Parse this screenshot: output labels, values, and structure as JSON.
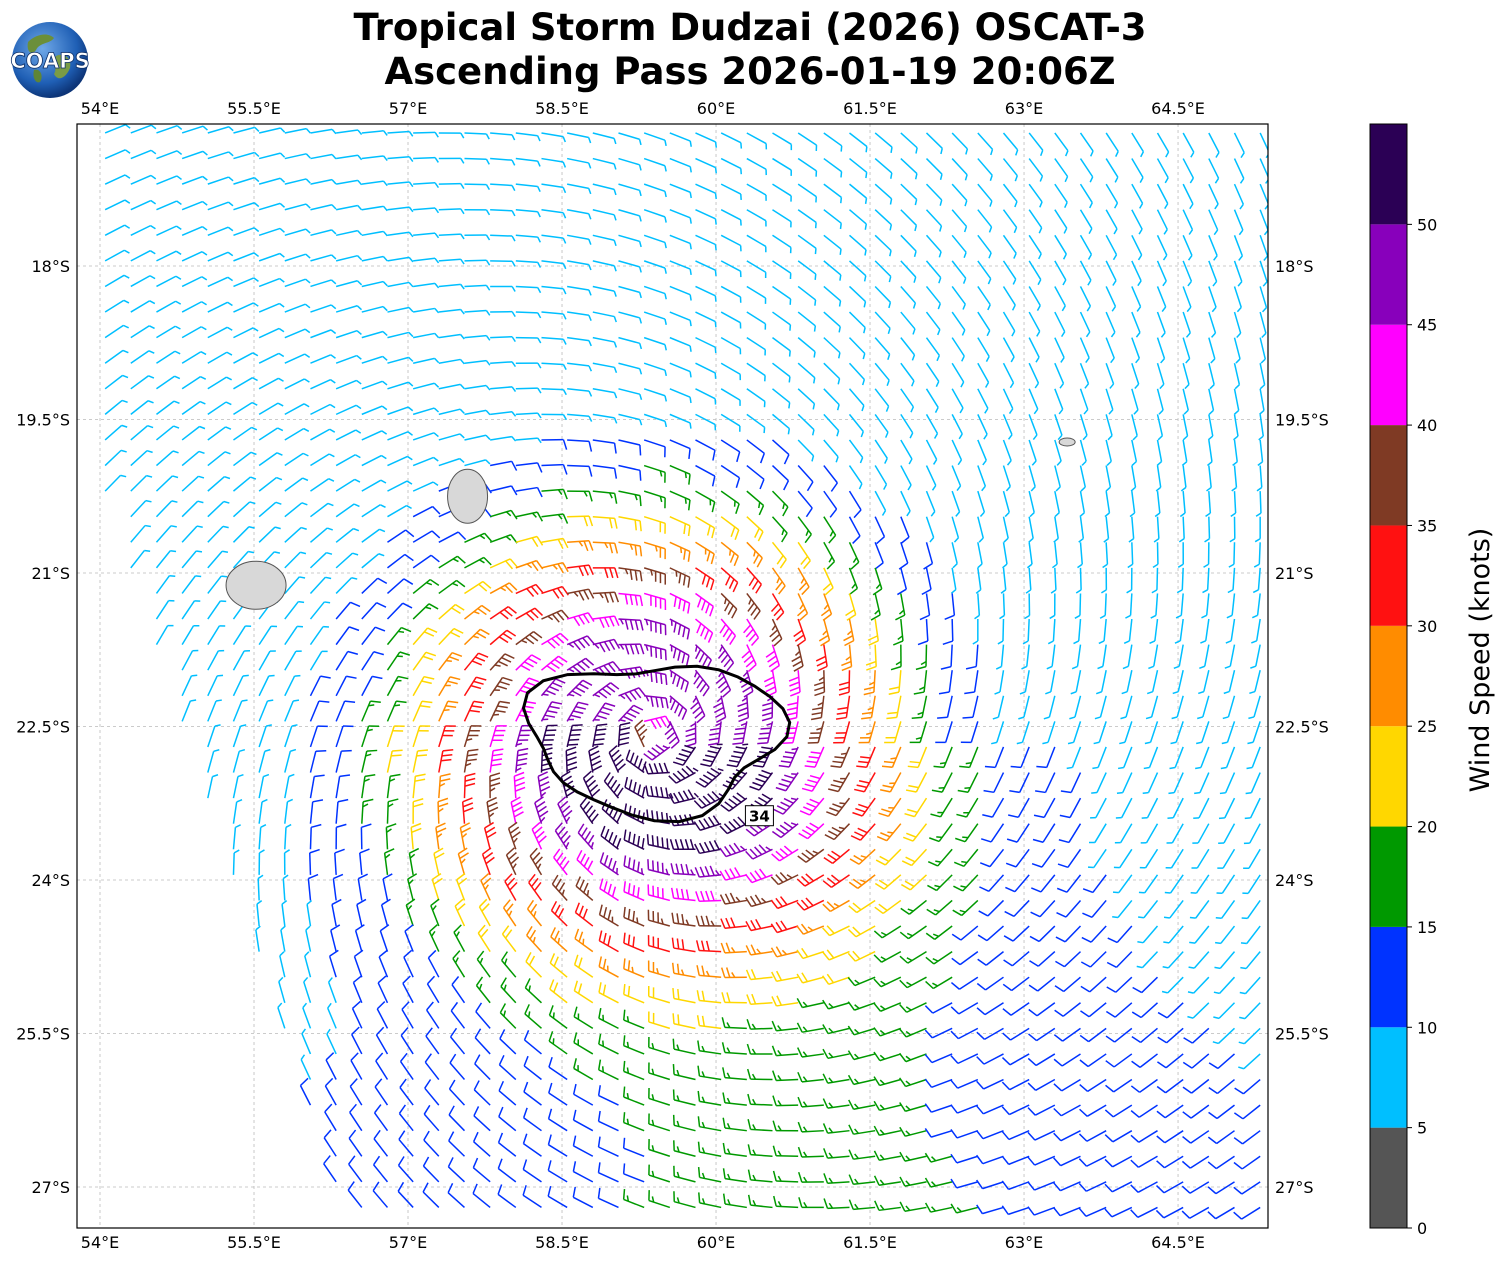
{
  "title": {
    "line1": "Tropical Storm Dudzai (2026) OSCAT-3",
    "line2": "Ascending Pass 2026-01-19 20:06Z"
  },
  "logo": {
    "text": "COAPS"
  },
  "map": {
    "lon_range": [
      53.75,
      65.6
    ],
    "lat_range": [
      -27.4,
      -16.6
    ],
    "lon_ticks": [
      "54°E",
      "55.5°E",
      "57°E",
      "58.5°E",
      "60°E",
      "61.5°E",
      "63°E",
      "64.5°E"
    ],
    "lon_tick_values": [
      54,
      55.5,
      57,
      58.5,
      60,
      61.5,
      63,
      64.5
    ],
    "lat_ticks": [
      "18°S",
      "19.5°S",
      "21°S",
      "22.5°S",
      "24°S",
      "25.5°S",
      "27°S"
    ],
    "lat_tick_values": [
      -18,
      -19.5,
      -21,
      -22.5,
      -24,
      -25.5,
      -27
    ],
    "grid": true,
    "storm_center": {
      "lon": 59.4,
      "lat": -22.6
    },
    "contour": {
      "label": "34",
      "units": "knots"
    },
    "islands": [
      "Réunion",
      "Mauritius",
      "Rodrigues"
    ]
  },
  "colorbar": {
    "label": "Wind Speed (knots)",
    "ticks": [
      "0",
      "5",
      "10",
      "15",
      "20",
      "25",
      "30",
      "35",
      "40",
      "45",
      "50"
    ],
    "bins": [
      {
        "min": 0,
        "max": 5,
        "color": "#555555"
      },
      {
        "min": 5,
        "max": 10,
        "color": "#00bfff"
      },
      {
        "min": 10,
        "max": 15,
        "color": "#0033ff"
      },
      {
        "min": 15,
        "max": 20,
        "color": "#009900"
      },
      {
        "min": 20,
        "max": 25,
        "color": "#ffd700"
      },
      {
        "min": 25,
        "max": 30,
        "color": "#ff8c00"
      },
      {
        "min": 30,
        "max": 35,
        "color": "#ff1111"
      },
      {
        "min": 35,
        "max": 40,
        "color": "#7f3a24"
      },
      {
        "min": 40,
        "max": 45,
        "color": "#ff00ff"
      },
      {
        "min": 45,
        "max": 50,
        "color": "#8800bb"
      },
      {
        "min": 50,
        "max": 55,
        "color": "#2b0055"
      }
    ]
  }
}
